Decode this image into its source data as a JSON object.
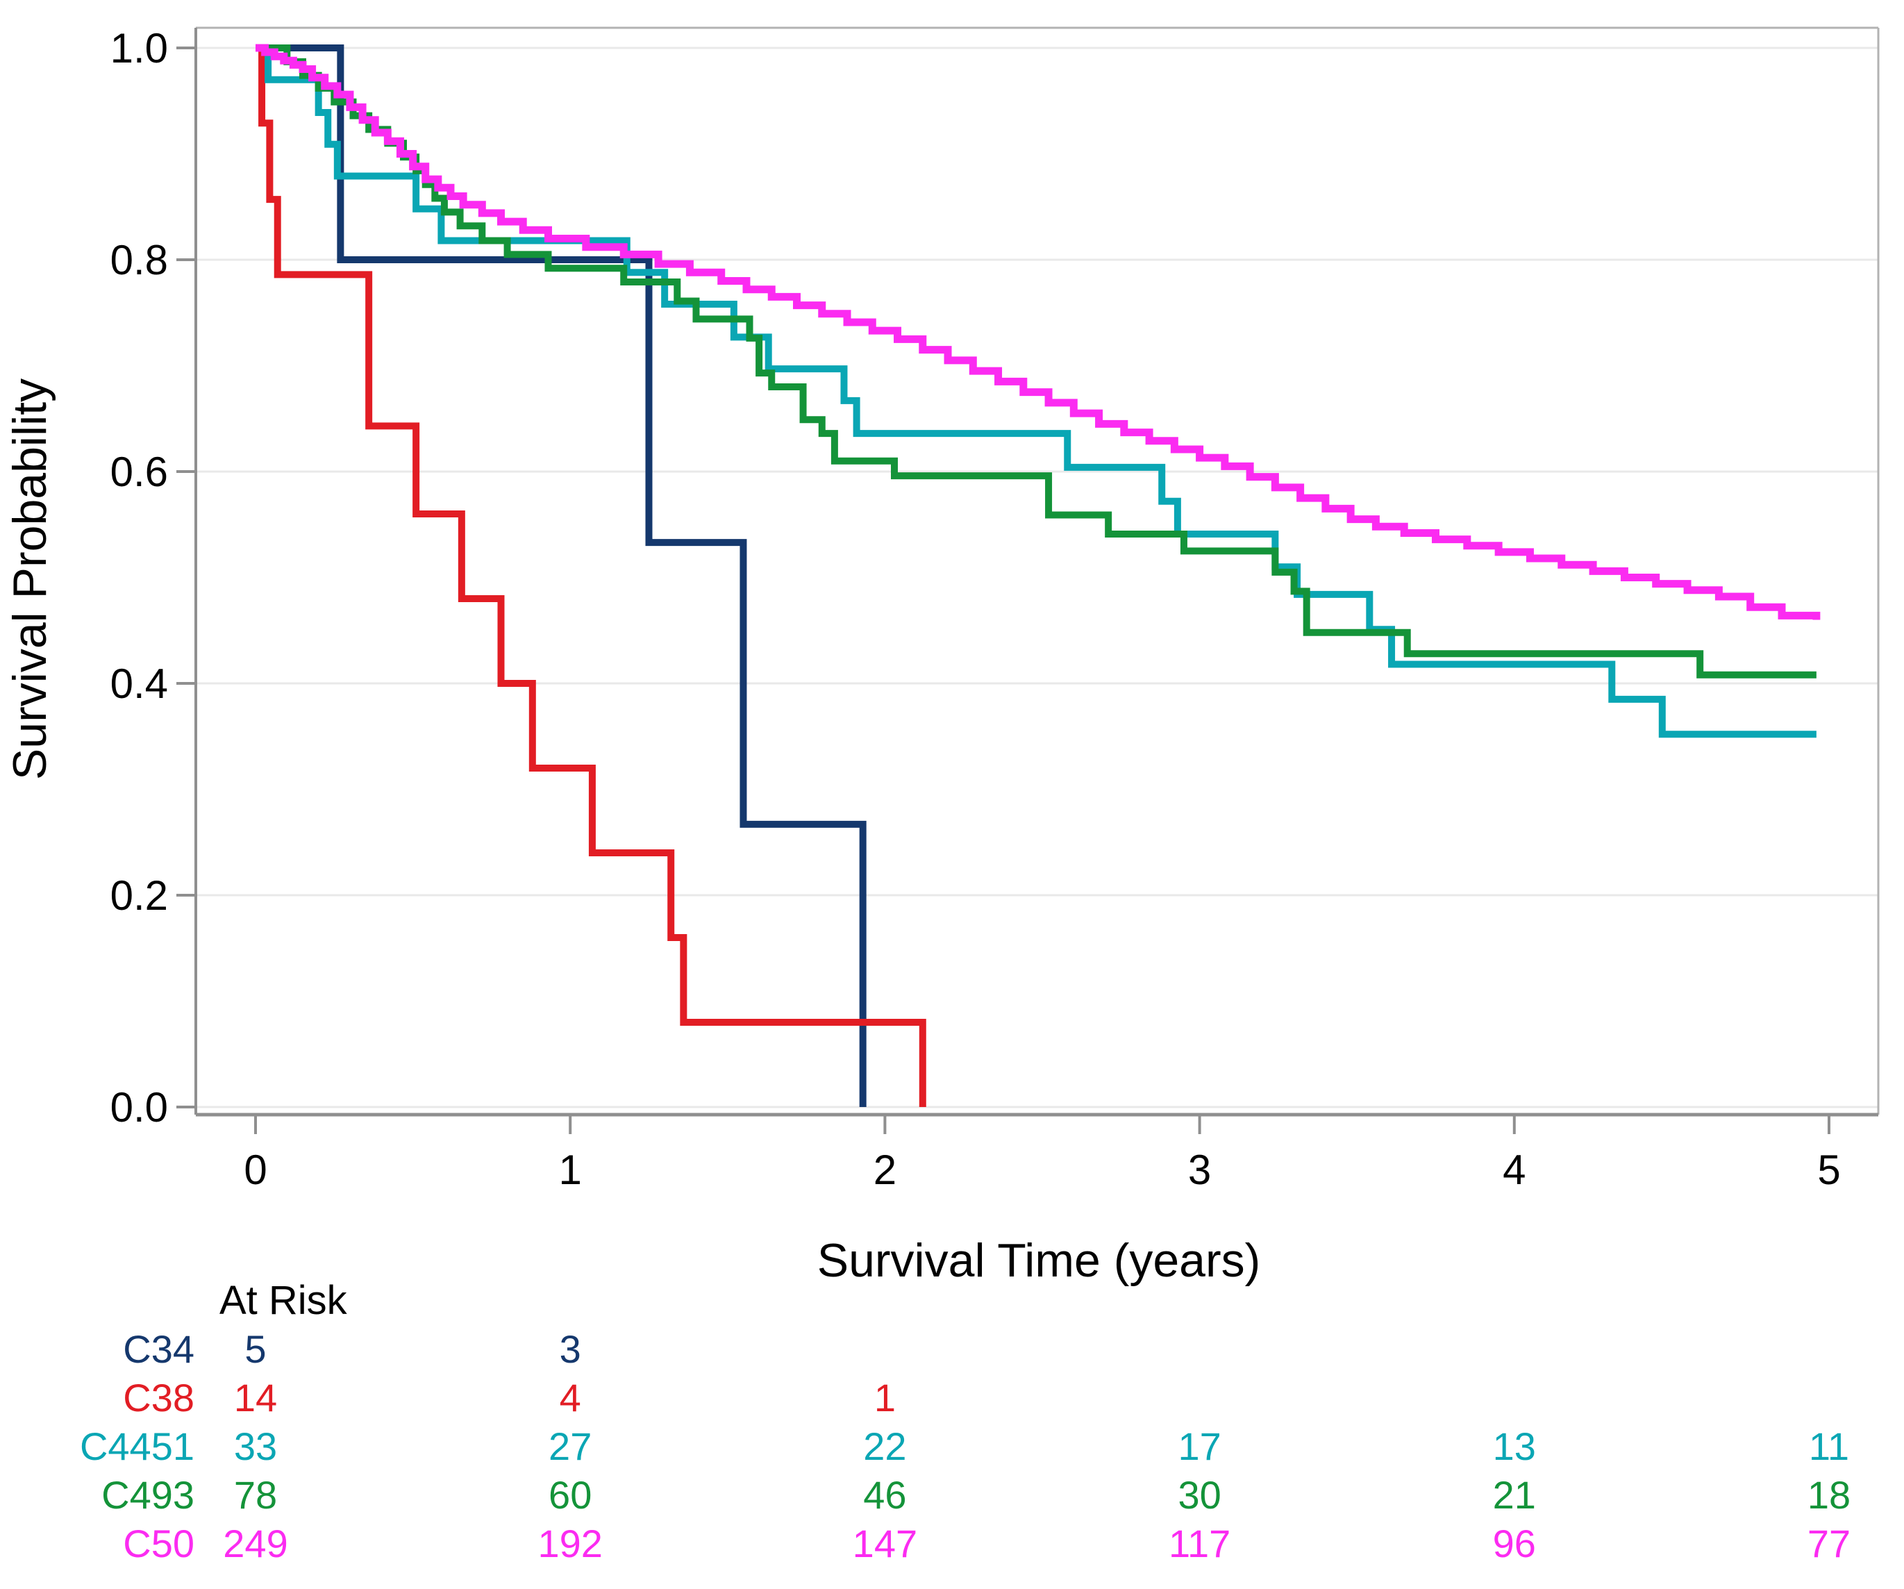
{
  "chart_data": {
    "type": "line",
    "subtype": "kaplan-meier-step-plot",
    "title": "",
    "xlabel": "Survival Time (years)",
    "ylabel": "Survival Probability",
    "xlim": [
      0,
      5
    ],
    "ylim": [
      0.0,
      1.0
    ],
    "grid": "horizontal-only",
    "legend_position": "none",
    "x_ticks": [
      {
        "value": 0,
        "label": "0"
      },
      {
        "value": 1,
        "label": "1"
      },
      {
        "value": 2,
        "label": "2"
      },
      {
        "value": 3,
        "label": "3"
      },
      {
        "value": 4,
        "label": "4"
      },
      {
        "value": 5,
        "label": "5"
      }
    ],
    "y_ticks": [
      {
        "value": 1.0,
        "label": "1.0"
      },
      {
        "value": 0.8,
        "label": "0.8"
      },
      {
        "value": 0.6,
        "label": "0.6"
      },
      {
        "value": 0.4,
        "label": "0.4"
      },
      {
        "value": 0.2,
        "label": "0.2"
      },
      {
        "value": 0.0,
        "label": "0.0"
      }
    ],
    "series": [
      {
        "name": "C34",
        "color": "#15386d",
        "width": 10,
        "points": [
          [
            0,
            1.0
          ],
          [
            0.27,
            0.8
          ],
          [
            1.25,
            0.533
          ],
          [
            1.55,
            0.267
          ],
          [
            1.93,
            0.0
          ]
        ]
      },
      {
        "name": "C38",
        "color": "#e21d24",
        "width": 10,
        "points": [
          [
            0,
            1.0
          ],
          [
            0.02,
            0.929
          ],
          [
            0.045,
            0.857
          ],
          [
            0.07,
            0.786
          ],
          [
            0.36,
            0.643
          ],
          [
            0.51,
            0.56
          ],
          [
            0.655,
            0.48
          ],
          [
            0.78,
            0.4
          ],
          [
            0.88,
            0.32
          ],
          [
            1.07,
            0.24
          ],
          [
            1.32,
            0.16
          ],
          [
            1.36,
            0.08
          ],
          [
            2.12,
            0.0
          ]
        ]
      },
      {
        "name": "C4451",
        "color": "#0aa6b4",
        "width": 10,
        "points": [
          [
            0,
            1.0
          ],
          [
            0.04,
            0.97
          ],
          [
            0.2,
            0.939
          ],
          [
            0.23,
            0.909
          ],
          [
            0.26,
            0.879
          ],
          [
            0.51,
            0.848
          ],
          [
            0.59,
            0.818
          ],
          [
            1.18,
            0.788
          ],
          [
            1.3,
            0.758
          ],
          [
            1.52,
            0.727
          ],
          [
            1.63,
            0.697
          ],
          [
            1.87,
            0.667
          ],
          [
            1.91,
            0.636
          ],
          [
            2.58,
            0.604
          ],
          [
            2.88,
            0.572
          ],
          [
            2.93,
            0.541
          ],
          [
            3.24,
            0.51
          ],
          [
            3.31,
            0.484
          ],
          [
            3.54,
            0.451
          ],
          [
            3.61,
            0.418
          ],
          [
            4.31,
            0.385
          ],
          [
            4.47,
            0.352
          ],
          [
            4.96,
            0.352
          ]
        ]
      },
      {
        "name": "C493",
        "color": "#149339",
        "width": 10,
        "points": [
          [
            0,
            1.0
          ],
          [
            0.1,
            0.987
          ],
          [
            0.15,
            0.974
          ],
          [
            0.2,
            0.962
          ],
          [
            0.25,
            0.949
          ],
          [
            0.31,
            0.936
          ],
          [
            0.36,
            0.923
          ],
          [
            0.42,
            0.91
          ],
          [
            0.47,
            0.897
          ],
          [
            0.51,
            0.884
          ],
          [
            0.54,
            0.871
          ],
          [
            0.57,
            0.858
          ],
          [
            0.6,
            0.845
          ],
          [
            0.65,
            0.832
          ],
          [
            0.72,
            0.818
          ],
          [
            0.8,
            0.805
          ],
          [
            0.93,
            0.792
          ],
          [
            1.17,
            0.779
          ],
          [
            1.34,
            0.761
          ],
          [
            1.4,
            0.744
          ],
          [
            1.57,
            0.726
          ],
          [
            1.6,
            0.693
          ],
          [
            1.64,
            0.68
          ],
          [
            1.74,
            0.649
          ],
          [
            1.8,
            0.636
          ],
          [
            1.84,
            0.61
          ],
          [
            2.03,
            0.596
          ],
          [
            2.52,
            0.559
          ],
          [
            2.71,
            0.541
          ],
          [
            2.95,
            0.525
          ],
          [
            3.24,
            0.505
          ],
          [
            3.3,
            0.487
          ],
          [
            3.34,
            0.448
          ],
          [
            3.66,
            0.428
          ],
          [
            4.59,
            0.408
          ],
          [
            4.96,
            0.408
          ]
        ]
      },
      {
        "name": "C50",
        "color": "#fb2bf1",
        "width": 11,
        "points": [
          [
            0,
            1.0
          ],
          [
            0.03,
            0.996
          ],
          [
            0.06,
            0.992
          ],
          [
            0.09,
            0.988
          ],
          [
            0.12,
            0.984
          ],
          [
            0.15,
            0.98
          ],
          [
            0.18,
            0.972
          ],
          [
            0.22,
            0.964
          ],
          [
            0.26,
            0.956
          ],
          [
            0.3,
            0.944
          ],
          [
            0.34,
            0.932
          ],
          [
            0.38,
            0.92
          ],
          [
            0.42,
            0.912
          ],
          [
            0.46,
            0.9
          ],
          [
            0.5,
            0.888
          ],
          [
            0.54,
            0.876
          ],
          [
            0.58,
            0.868
          ],
          [
            0.62,
            0.86
          ],
          [
            0.66,
            0.852
          ],
          [
            0.72,
            0.844
          ],
          [
            0.78,
            0.836
          ],
          [
            0.85,
            0.828
          ],
          [
            0.93,
            0.82
          ],
          [
            1.05,
            0.812
          ],
          [
            1.17,
            0.805
          ],
          [
            1.28,
            0.796
          ],
          [
            1.38,
            0.788
          ],
          [
            1.48,
            0.78
          ],
          [
            1.56,
            0.772
          ],
          [
            1.64,
            0.765
          ],
          [
            1.72,
            0.757
          ],
          [
            1.8,
            0.749
          ],
          [
            1.88,
            0.741
          ],
          [
            1.96,
            0.733
          ],
          [
            2.04,
            0.725
          ],
          [
            2.12,
            0.715
          ],
          [
            2.2,
            0.705
          ],
          [
            2.28,
            0.695
          ],
          [
            2.36,
            0.685
          ],
          [
            2.44,
            0.675
          ],
          [
            2.52,
            0.665
          ],
          [
            2.6,
            0.655
          ],
          [
            2.68,
            0.645
          ],
          [
            2.76,
            0.637
          ],
          [
            2.84,
            0.629
          ],
          [
            2.92,
            0.621
          ],
          [
            3.0,
            0.613
          ],
          [
            3.08,
            0.605
          ],
          [
            3.16,
            0.595
          ],
          [
            3.24,
            0.585
          ],
          [
            3.32,
            0.575
          ],
          [
            3.4,
            0.565
          ],
          [
            3.48,
            0.555
          ],
          [
            3.56,
            0.548
          ],
          [
            3.65,
            0.542
          ],
          [
            3.75,
            0.536
          ],
          [
            3.85,
            0.53
          ],
          [
            3.95,
            0.524
          ],
          [
            4.05,
            0.518
          ],
          [
            4.15,
            0.512
          ],
          [
            4.25,
            0.506
          ],
          [
            4.35,
            0.5
          ],
          [
            4.45,
            0.494
          ],
          [
            4.55,
            0.488
          ],
          [
            4.65,
            0.482
          ],
          [
            4.75,
            0.472
          ],
          [
            4.85,
            0.464
          ],
          [
            4.96,
            0.46
          ]
        ]
      }
    ],
    "at_risk": {
      "title": "At Risk",
      "times": [
        0,
        1,
        2,
        3,
        4,
        5
      ],
      "rows": [
        {
          "label": "C34",
          "color": "#15386d",
          "values": [
            "5",
            "3",
            "",
            "",
            "",
            ""
          ]
        },
        {
          "label": "C38",
          "color": "#e21d24",
          "values": [
            "14",
            "4",
            "1",
            "",
            "",
            ""
          ]
        },
        {
          "label": "C4451",
          "color": "#0aa6b4",
          "values": [
            "33",
            "27",
            "22",
            "17",
            "13",
            "11"
          ]
        },
        {
          "label": "C493",
          "color": "#149339",
          "values": [
            "78",
            "60",
            "46",
            "30",
            "21",
            "18"
          ]
        },
        {
          "label": "C50",
          "color": "#fb2bf1",
          "values": [
            "249",
            "192",
            "147",
            "117",
            "96",
            "77"
          ]
        }
      ]
    },
    "style_colors": {
      "gridline": "#e9e9e9",
      "axis_line": "#8f8f8f",
      "frame_line": "#b3b3b3",
      "background": "#ffffff"
    }
  }
}
